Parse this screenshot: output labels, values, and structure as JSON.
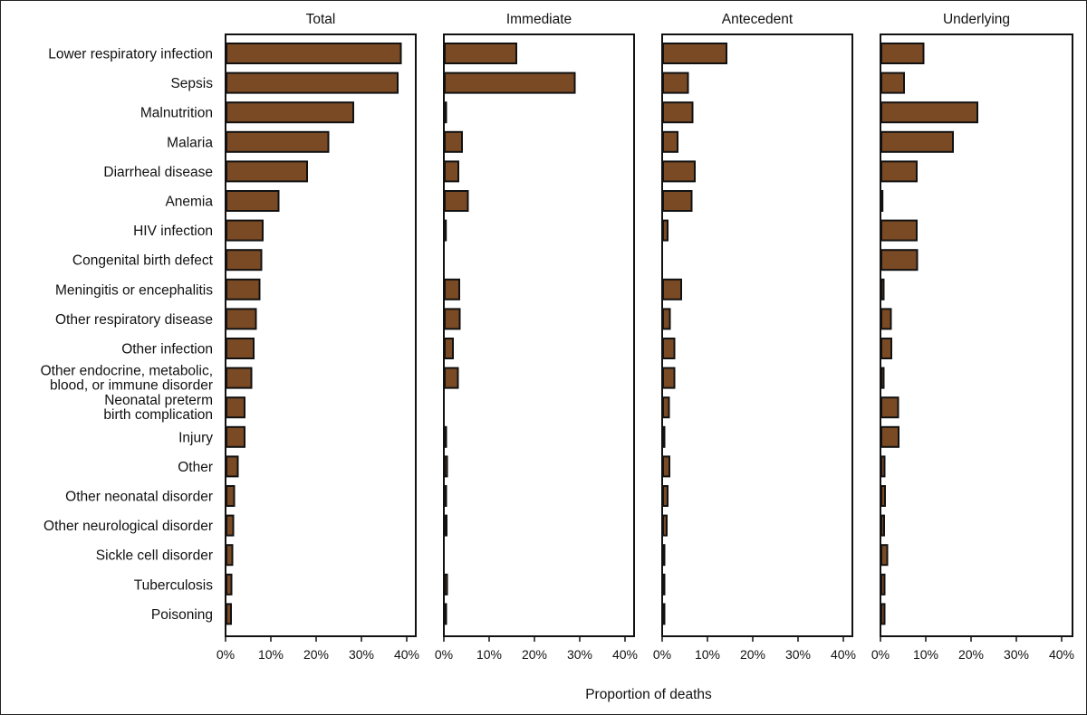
{
  "chart_data": {
    "type": "bar",
    "orientation": "horizontal",
    "xlabel": "Proportion of deaths",
    "xlim": [
      0,
      40
    ],
    "x_ticks": [
      "0%",
      "10%",
      "20%",
      "30%",
      "40%"
    ],
    "grid": false,
    "bar_color": "#7a4a25",
    "categories": [
      [
        "Lower respiratory infection"
      ],
      [
        "Sepsis"
      ],
      [
        "Malnutrition"
      ],
      [
        "Malaria"
      ],
      [
        "Diarrheal disease"
      ],
      [
        "Anemia"
      ],
      [
        "HIV infection"
      ],
      [
        "Congenital birth defect"
      ],
      [
        "Meningitis or encephalitis"
      ],
      [
        "Other respiratory disease"
      ],
      [
        "Other infection"
      ],
      [
        "Other endocrine, metabolic,",
        "blood, or immune disorder"
      ],
      [
        "Neonatal preterm",
        "birth complication"
      ],
      [
        "Injury"
      ],
      [
        "Other"
      ],
      [
        "Other neonatal disorder"
      ],
      [
        "Other neurological disorder"
      ],
      [
        "Sickle cell disorder"
      ],
      [
        "Tuberculosis"
      ],
      [
        "Poisoning"
      ]
    ],
    "series": [
      {
        "name": "Total",
        "values": [
          38.5,
          37.8,
          28.0,
          22.5,
          17.8,
          11.5,
          8.0,
          7.7,
          7.3,
          6.5,
          6.0,
          5.5,
          4.0,
          4.0,
          2.5,
          1.7,
          1.5,
          1.3,
          1.1,
          1.0
        ]
      },
      {
        "name": "Immediate",
        "values": [
          15.8,
          28.7,
          0.3,
          3.8,
          3.0,
          5.1,
          0.2,
          0,
          3.2,
          3.3,
          1.8,
          2.9,
          0,
          0.3,
          0.5,
          0.3,
          0.4,
          0,
          0.5,
          0.3
        ]
      },
      {
        "name": "Antecedent",
        "values": [
          14.0,
          5.5,
          6.5,
          3.2,
          7.0,
          6.3,
          1.0,
          0,
          4.0,
          1.5,
          2.5,
          2.5,
          1.3,
          0.3,
          1.4,
          1.0,
          0.8,
          0.3,
          0.3,
          0.3
        ]
      },
      {
        "name": "Underlying",
        "values": [
          9.3,
          5.0,
          21.2,
          15.8,
          7.8,
          0.2,
          7.8,
          7.9,
          0.5,
          2.1,
          2.2,
          0.5,
          3.7,
          3.8,
          0.7,
          0.8,
          0.6,
          1.3,
          0.7,
          0.7
        ]
      }
    ]
  }
}
